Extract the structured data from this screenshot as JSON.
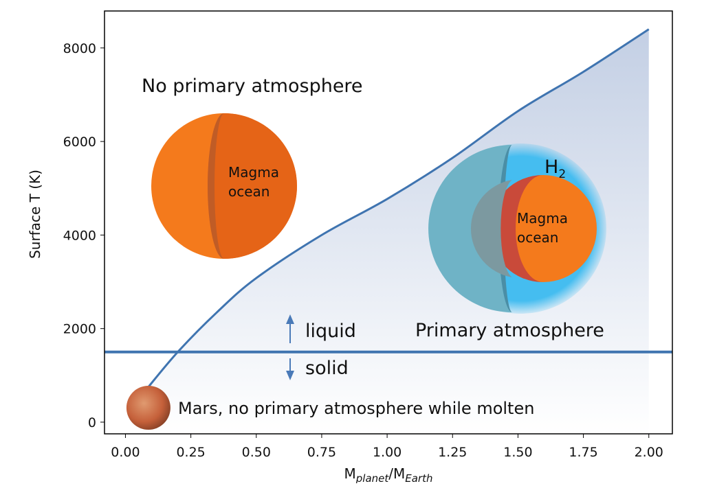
{
  "chart_data": {
    "type": "line",
    "x_label": [
      "M",
      "planet",
      "/M",
      "Earth"
    ],
    "y_label": "Surface T (K)",
    "x": [
      0.08,
      0.2,
      0.35,
      0.5,
      0.75,
      1.0,
      1.25,
      1.5,
      1.75,
      2.0
    ],
    "series": [
      {
        "color": "#3f74b0",
        "values": [
          700,
          1500,
          2350,
          3080,
          4000,
          4770,
          5650,
          6650,
          7490,
          8400
        ]
      }
    ],
    "threshold": 1500,
    "xlim": [
      -0.08,
      2.09
    ],
    "ylim": [
      -250,
      8790
    ],
    "xticks": [
      {
        "value": 0,
        "label": "0.00"
      },
      {
        "value": 0.25,
        "label": "0.25"
      },
      {
        "value": 0.5,
        "label": "0.50"
      },
      {
        "value": 0.75,
        "label": "0.75"
      },
      {
        "value": 1,
        "label": "1.00"
      },
      {
        "value": 1.25,
        "label": "1.25"
      },
      {
        "value": 1.5,
        "label": "1.50"
      },
      {
        "value": 1.75,
        "label": "1.75"
      },
      {
        "value": 2,
        "label": "2.00"
      }
    ],
    "yticks": [
      0,
      2000,
      4000,
      6000,
      8000
    ],
    "annotations": {
      "no_atmosphere": "No primary atmosphere",
      "magma_left": [
        "Magma",
        "ocean"
      ],
      "magma_right": [
        "Magma",
        "ocean"
      ],
      "h2": [
        "H",
        "2"
      ],
      "liquid": "liquid",
      "solid": "solid",
      "primary_atmosphere": "Primary atmosphere",
      "mars": "Mars, no primary atmosphere while molten"
    }
  }
}
